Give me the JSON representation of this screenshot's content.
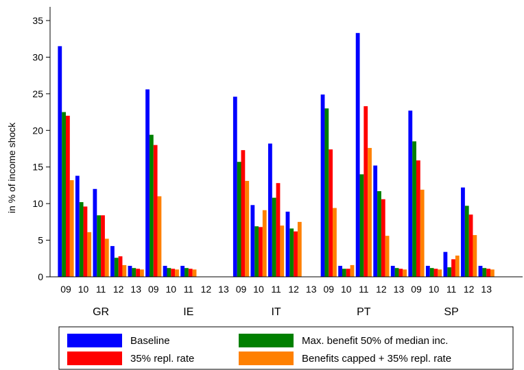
{
  "chart_data": {
    "type": "bar",
    "ylabel": "in % of income shock",
    "ylim": [
      0,
      35
    ],
    "yticks": [
      0,
      5,
      10,
      15,
      20,
      25,
      30,
      35
    ],
    "grid": false,
    "legend_position": "bottom",
    "groups": [
      {
        "label": "GR",
        "years": [
          "09",
          "10",
          "11",
          "12",
          "13"
        ]
      },
      {
        "label": "IE",
        "years": [
          "09",
          "10",
          "11",
          "12",
          "13"
        ]
      },
      {
        "label": "IT",
        "years": [
          "09",
          "10",
          "11",
          "12",
          "13"
        ]
      },
      {
        "label": "PT",
        "years": [
          "09",
          "10",
          "11",
          "12",
          "13"
        ]
      },
      {
        "label": "SP",
        "years": [
          "09",
          "10",
          "11",
          "12",
          "13"
        ]
      }
    ],
    "series": [
      {
        "name": "Baseline",
        "color": "#0000ff",
        "values": [
          31.5,
          13.8,
          12.0,
          4.2,
          1.5,
          25.6,
          1.5,
          1.5,
          0,
          0,
          24.6,
          9.8,
          18.2,
          8.9,
          0,
          24.9,
          1.5,
          33.3,
          15.2,
          1.5,
          22.7,
          1.5,
          3.4,
          12.2,
          1.5
        ]
      },
      {
        "name": "Max. benefit 50% of median inc.",
        "color": "#008000",
        "values": [
          22.5,
          10.2,
          8.4,
          2.6,
          1.2,
          19.4,
          1.2,
          1.2,
          0,
          0,
          15.7,
          6.9,
          10.8,
          6.6,
          0,
          23.0,
          1.1,
          14.0,
          11.7,
          1.2,
          18.5,
          1.2,
          1.3,
          9.7,
          1.2
        ]
      },
      {
        "name": "35% repl. rate",
        "color": "#ff0000",
        "values": [
          22.0,
          9.6,
          8.4,
          2.8,
          1.1,
          18.0,
          1.1,
          1.1,
          0,
          0,
          17.3,
          6.8,
          12.8,
          6.2,
          0,
          17.4,
          1.1,
          23.3,
          10.6,
          1.1,
          15.9,
          1.1,
          2.4,
          8.5,
          1.1
        ]
      },
      {
        "name": "Benefits capped + 35% repl. rate",
        "color": "#ff8000",
        "values": [
          13.2,
          6.1,
          5.2,
          1.6,
          1.0,
          11.0,
          1.0,
          1.0,
          0,
          0,
          13.1,
          9.1,
          7.0,
          7.5,
          0,
          9.4,
          1.6,
          17.6,
          5.6,
          1.0,
          11.9,
          1.0,
          2.9,
          5.7,
          1.0
        ]
      }
    ]
  }
}
